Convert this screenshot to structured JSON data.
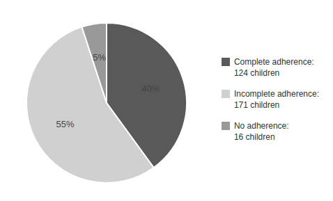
{
  "chart_data": {
    "type": "pie",
    "categories": [
      "Complete adherence:\n124 children",
      "Incomplete adherence:\n171 children",
      "No adherence:\n16 children"
    ],
    "values": [
      40,
      55,
      5
    ],
    "value_labels": [
      "40%",
      "55%",
      "5%"
    ],
    "colors": [
      "#595959",
      "#d0d0d0",
      "#999999"
    ],
    "data_labels": true,
    "legend": "right"
  }
}
